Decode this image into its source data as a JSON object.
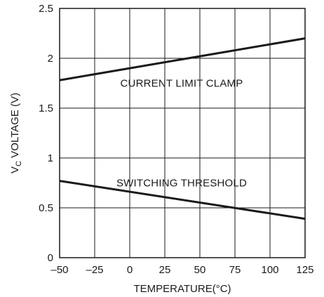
{
  "chart_data": {
    "type": "line",
    "title": "",
    "xlabel": "TEMPERATURE(°C)",
    "ylabel": {
      "main": "V",
      "subscript": "C",
      "rest": " VOLTAGE (V)"
    },
    "xlim": [
      -50,
      125
    ],
    "ylim": [
      0,
      2.5
    ],
    "x_ticks": [
      -50,
      -25,
      0,
      25,
      50,
      75,
      100,
      125
    ],
    "x_tick_labels": [
      "–50",
      "–25",
      "0",
      "25",
      "50",
      "75",
      "100",
      "125"
    ],
    "y_ticks": [
      0,
      0.5,
      1,
      1.5,
      2,
      2.5
    ],
    "y_tick_labels": [
      "0",
      "0.5",
      "1",
      "1.5",
      "2",
      "2.5"
    ],
    "grid": true,
    "series": [
      {
        "name": "CURRENT LIMIT CLAMP",
        "x": [
          -50,
          125
        ],
        "y": [
          1.78,
          2.2
        ]
      },
      {
        "name": "SWITCHING THRESHOLD",
        "x": [
          -50,
          125
        ],
        "y": [
          0.77,
          0.39
        ]
      }
    ],
    "annotations": [
      {
        "text": "CURRENT LIMIT CLAMP",
        "x": 37,
        "y": 1.75
      },
      {
        "text": "SWITCHING THRESHOLD",
        "x": 37,
        "y": 0.75
      }
    ]
  },
  "colors": {
    "line": "#1a1a1a",
    "grid": "#1a1a1a",
    "background": "#ffffff"
  }
}
